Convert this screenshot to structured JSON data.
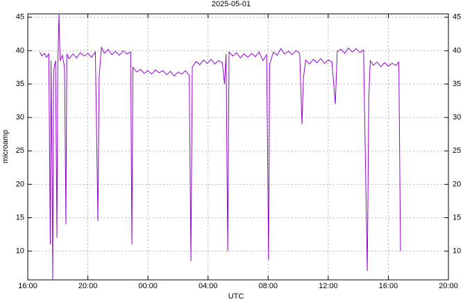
{
  "chart_data": {
    "type": "line",
    "title": "2025-05-01",
    "xlabel": "UTC",
    "ylabel": "microamp",
    "xlim": [
      16,
      44
    ],
    "ylim": [
      5.7,
      45.5
    ],
    "xticks": [
      {
        "value": 16,
        "label": "16:00"
      },
      {
        "value": 20,
        "label": "20:00"
      },
      {
        "value": 24,
        "label": "00:00"
      },
      {
        "value": 28,
        "label": "04:00"
      },
      {
        "value": 32,
        "label": "08:00"
      },
      {
        "value": 36,
        "label": "12:00"
      },
      {
        "value": 40,
        "label": "16:00"
      },
      {
        "value": 44,
        "label": "20:00"
      }
    ],
    "yticks": [
      10,
      15,
      20,
      25,
      30,
      35,
      40,
      45
    ],
    "grid": true,
    "series": [
      {
        "color": "#9400d3",
        "x": [
          16.8,
          16.95,
          17.1,
          17.25,
          17.4,
          17.5,
          17.55,
          17.62,
          17.66,
          17.72,
          17.85,
          17.94,
          18.0,
          18.08,
          18.15,
          18.3,
          18.45,
          18.54,
          18.6,
          18.75,
          19.0,
          19.25,
          19.5,
          19.75,
          20.0,
          20.25,
          20.5,
          20.67,
          20.75,
          20.9,
          21.1,
          21.35,
          21.6,
          21.85,
          22.1,
          22.35,
          22.6,
          22.85,
          22.93,
          23.0,
          23.25,
          23.5,
          23.75,
          24.0,
          24.25,
          24.5,
          24.75,
          25.0,
          25.25,
          25.5,
          25.75,
          26.0,
          26.25,
          26.5,
          26.75,
          26.86,
          26.95,
          27.2,
          27.45,
          27.7,
          27.95,
          28.2,
          28.45,
          28.7,
          28.95,
          29.1,
          29.2,
          29.31,
          29.4,
          29.65,
          29.9,
          30.15,
          30.4,
          30.65,
          30.9,
          31.15,
          31.4,
          31.65,
          31.9,
          32.03,
          32.1,
          32.35,
          32.6,
          32.85,
          33.1,
          33.35,
          33.6,
          33.85,
          34.1,
          34.25,
          34.35,
          34.5,
          34.75,
          35.0,
          35.25,
          35.5,
          35.75,
          36.0,
          36.25,
          36.47,
          36.6,
          36.85,
          37.1,
          37.35,
          37.6,
          37.85,
          38.1,
          38.35,
          38.6,
          38.7,
          38.8,
          39.0,
          39.25,
          39.5,
          39.75,
          40.0,
          40.25,
          40.5,
          40.7,
          40.81
        ],
        "values": [
          39.8,
          39.2,
          39.6,
          39.0,
          39.5,
          11,
          38.5,
          21,
          5.7,
          37,
          38.5,
          12,
          38,
          45.5,
          38.5,
          39.3,
          37.5,
          14,
          39.5,
          38.8,
          39.5,
          38.9,
          39.7,
          39.2,
          39.6,
          39.0,
          39.8,
          14.5,
          36,
          40.5,
          39.6,
          40.2,
          39.4,
          39.9,
          39.3,
          40.0,
          39.5,
          39.8,
          11,
          37.5,
          36.8,
          37.2,
          36.6,
          37.0,
          36.5,
          37.1,
          36.7,
          37.0,
          36.4,
          36.9,
          36.2,
          36.8,
          36.5,
          37.0,
          36.3,
          8.5,
          37.5,
          38.4,
          37.9,
          38.6,
          38.1,
          38.7,
          38.0,
          38.5,
          38.2,
          35,
          39.5,
          10,
          39.8,
          39.2,
          39.7,
          38.9,
          39.5,
          39.0,
          39.6,
          39.1,
          39.8,
          38.5,
          39.4,
          8.7,
          38,
          39.8,
          39.3,
          40.3,
          39.5,
          39.9,
          39.4,
          40.0,
          39.6,
          29,
          36,
          38.6,
          38.0,
          38.7,
          38.2,
          38.8,
          38.1,
          38.6,
          38.3,
          32,
          39.9,
          40.2,
          39.6,
          40.4,
          39.8,
          40.3,
          39.7,
          40.1,
          7,
          33,
          38.5,
          37.8,
          38.3,
          37.6,
          38.2,
          37.7,
          38.1,
          37.8,
          38.3,
          10
        ]
      }
    ]
  }
}
